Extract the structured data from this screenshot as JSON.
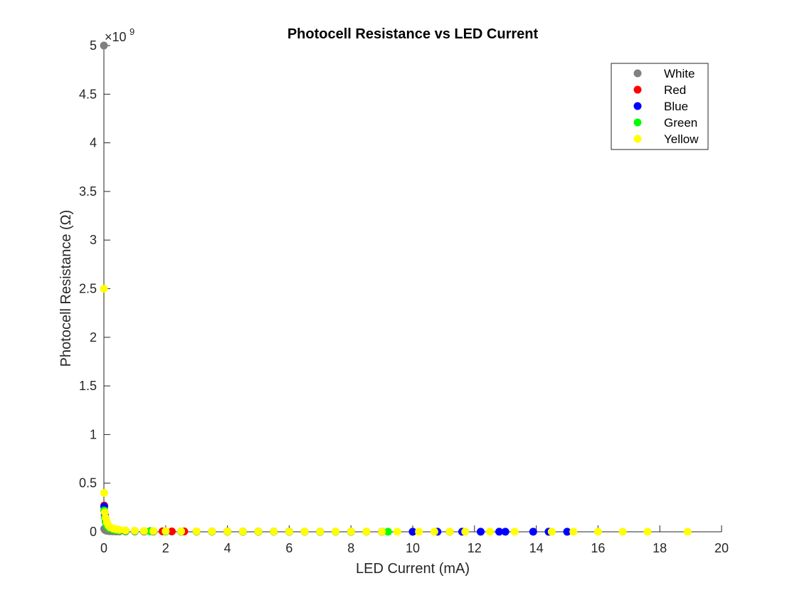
{
  "chart_data": {
    "type": "scatter",
    "title": "Photocell Resistance vs LED Current",
    "xlabel": "LED Current (mA)",
    "ylabel": "Photocell Resistance (Ω)",
    "xlim": [
      0,
      20
    ],
    "ylim": [
      0,
      5000000000
    ],
    "x_ticks": [
      "0",
      "2",
      "4",
      "6",
      "8",
      "10",
      "12",
      "14",
      "16",
      "18",
      "20"
    ],
    "y_ticks": [
      "0",
      "0.5",
      "1",
      "1.5",
      "2",
      "2.5",
      "3",
      "3.5",
      "4",
      "4.5",
      "5"
    ],
    "y_exponent": "×10",
    "y_exponent_power": "9",
    "grid": false,
    "legend_position": "top-right",
    "series": [
      {
        "name": "White",
        "color": "#808080",
        "points": [
          [
            0,
            5000000000
          ],
          [
            0.01,
            30000000
          ],
          [
            0.03,
            20000000
          ],
          [
            0.06,
            15000000
          ],
          [
            0.1,
            10000000
          ],
          [
            0.15,
            8000000
          ],
          [
            0.2,
            6000000
          ],
          [
            0.3,
            5000000
          ],
          [
            0.4,
            4000000
          ],
          [
            0.5,
            3500000
          ],
          [
            0.7,
            3000000
          ],
          [
            1.0,
            2500000
          ],
          [
            1.3,
            2000000
          ],
          [
            1.6,
            1800000
          ],
          [
            2.0,
            1500000
          ],
          [
            2.5,
            1300000
          ],
          [
            3.0,
            1100000
          ],
          [
            3.5,
            1000000
          ],
          [
            4.0,
            900000
          ],
          [
            4.5,
            800000
          ],
          [
            5.0,
            750000
          ],
          [
            6.0,
            650000
          ],
          [
            7.0,
            550000
          ],
          [
            8.0,
            500000
          ],
          [
            9.0,
            450000
          ],
          [
            10.0,
            400000
          ],
          [
            11.2,
            350000
          ]
        ]
      },
      {
        "name": "Red",
        "color": "#ff0000",
        "points": [
          [
            0.01,
            270000000
          ],
          [
            0.03,
            180000000
          ],
          [
            0.06,
            120000000
          ],
          [
            0.1,
            80000000
          ],
          [
            0.15,
            55000000
          ],
          [
            0.2,
            40000000
          ],
          [
            0.3,
            28000000
          ],
          [
            0.4,
            22000000
          ],
          [
            0.5,
            18000000
          ],
          [
            0.7,
            13000000
          ],
          [
            1.0,
            9000000
          ],
          [
            1.3,
            7000000
          ],
          [
            1.6,
            5500000
          ],
          [
            1.9,
            4500000
          ],
          [
            2.2,
            4000000
          ],
          [
            2.6,
            3500000
          ],
          [
            3.0,
            3000000
          ],
          [
            3.5,
            2600000
          ],
          [
            4.0,
            2300000
          ],
          [
            4.5,
            2000000
          ],
          [
            5.0,
            1800000
          ],
          [
            5.5,
            1600000
          ],
          [
            6.0,
            1400000
          ],
          [
            6.5,
            1300000
          ],
          [
            7.0,
            1200000
          ],
          [
            7.5,
            1100000
          ],
          [
            8.0,
            1000000
          ],
          [
            8.5,
            950000
          ]
        ]
      },
      {
        "name": "Blue",
        "color": "#0000ff",
        "points": [
          [
            0.01,
            260000000
          ],
          [
            0.03,
            170000000
          ],
          [
            0.06,
            110000000
          ],
          [
            0.1,
            75000000
          ],
          [
            0.15,
            52000000
          ],
          [
            0.2,
            38000000
          ],
          [
            0.3,
            26000000
          ],
          [
            0.4,
            20000000
          ],
          [
            0.5,
            16000000
          ],
          [
            0.7,
            12000000
          ],
          [
            1.0,
            8500000
          ],
          [
            1.5,
            6000000
          ],
          [
            2.0,
            4500000
          ],
          [
            2.5,
            3800000
          ],
          [
            3.0,
            3200000
          ],
          [
            3.5,
            2800000
          ],
          [
            4.0,
            2400000
          ],
          [
            4.5,
            2100000
          ],
          [
            5.0,
            1900000
          ],
          [
            5.5,
            1700000
          ],
          [
            6.0,
            1500000
          ],
          [
            7.0,
            1300000
          ],
          [
            8.0,
            1100000
          ],
          [
            9.0,
            950000
          ],
          [
            10.0,
            850000
          ],
          [
            10.8,
            800000
          ],
          [
            11.6,
            720000
          ],
          [
            12.2,
            680000
          ],
          [
            12.8,
            640000
          ],
          [
            13.0,
            620000
          ],
          [
            13.9,
            580000
          ],
          [
            14.4,
            550000
          ],
          [
            15.0,
            520000
          ]
        ]
      },
      {
        "name": "Green",
        "color": "#00ff00",
        "points": [
          [
            0.01,
            220000000
          ],
          [
            0.03,
            150000000
          ],
          [
            0.06,
            100000000
          ],
          [
            0.1,
            65000000
          ],
          [
            0.15,
            45000000
          ],
          [
            0.2,
            33000000
          ],
          [
            0.3,
            23000000
          ],
          [
            0.4,
            18000000
          ],
          [
            0.5,
            14000000
          ],
          [
            0.7,
            10000000
          ],
          [
            1.0,
            7500000
          ],
          [
            1.5,
            5500000
          ],
          [
            2.0,
            4200000
          ],
          [
            2.5,
            3500000
          ],
          [
            3.0,
            3000000
          ],
          [
            3.5,
            2600000
          ],
          [
            4.0,
            2300000
          ],
          [
            4.5,
            2000000
          ],
          [
            5.0,
            1800000
          ],
          [
            5.5,
            1600000
          ],
          [
            6.0,
            1450000
          ],
          [
            6.5,
            1300000
          ],
          [
            7.0,
            1200000
          ],
          [
            7.5,
            1100000
          ],
          [
            8.0,
            1000000
          ],
          [
            8.5,
            950000
          ],
          [
            9.2,
            900000
          ]
        ]
      },
      {
        "name": "Yellow",
        "color": "#ffff00",
        "points": [
          [
            0,
            2500000000
          ],
          [
            0.01,
            400000000
          ],
          [
            0.03,
            200000000
          ],
          [
            0.06,
            140000000
          ],
          [
            0.1,
            95000000
          ],
          [
            0.15,
            65000000
          ],
          [
            0.2,
            48000000
          ],
          [
            0.3,
            34000000
          ],
          [
            0.4,
            26000000
          ],
          [
            0.5,
            21000000
          ],
          [
            0.7,
            15000000
          ],
          [
            1.0,
            11000000
          ],
          [
            1.3,
            8500000
          ],
          [
            1.6,
            7000000
          ],
          [
            2.0,
            6000000
          ],
          [
            2.5,
            5000000
          ],
          [
            3.0,
            4200000
          ],
          [
            3.5,
            3600000
          ],
          [
            4.0,
            3200000
          ],
          [
            4.5,
            2800000
          ],
          [
            5.0,
            2500000
          ],
          [
            5.5,
            2300000
          ],
          [
            6.0,
            2100000
          ],
          [
            6.5,
            1900000
          ],
          [
            7.0,
            1800000
          ],
          [
            7.5,
            1650000
          ],
          [
            8.0,
            1550000
          ],
          [
            8.5,
            1450000
          ],
          [
            9.0,
            1350000
          ],
          [
            9.5,
            1250000
          ],
          [
            10.2,
            1150000
          ],
          [
            10.7,
            1100000
          ],
          [
            11.2,
            1050000
          ],
          [
            11.7,
            1000000
          ],
          [
            12.5,
            950000
          ],
          [
            13.3,
            900000
          ],
          [
            14.5,
            850000
          ],
          [
            15.2,
            800000
          ],
          [
            16.0,
            750000
          ],
          [
            16.8,
            700000
          ],
          [
            17.6,
            650000
          ],
          [
            18.9,
            600000
          ]
        ]
      }
    ]
  }
}
